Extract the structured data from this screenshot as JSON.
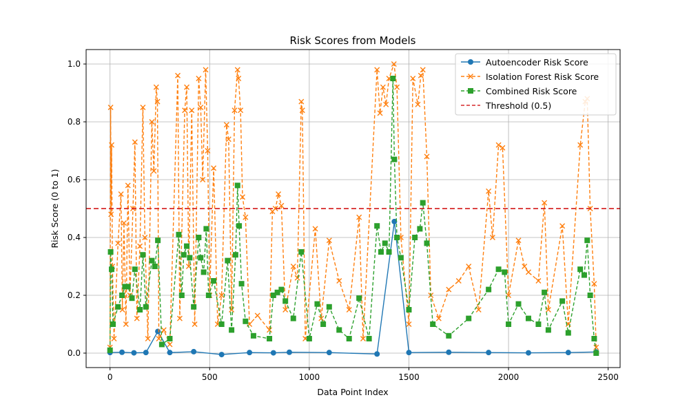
{
  "chart_data": {
    "type": "line",
    "title": "Risk Scores from Models",
    "xlabel": "Data Point Index",
    "ylabel": "Risk Score (0 to 1)",
    "xlim": [
      -120,
      2560
    ],
    "ylim": [
      -0.05,
      1.05
    ],
    "xticks": [
      0,
      500,
      1000,
      1500,
      2000,
      2500
    ],
    "yticks": [
      0.0,
      0.2,
      0.4,
      0.6,
      0.8,
      1.0
    ],
    "xtick_labels": [
      "0",
      "500",
      "1000",
      "1500",
      "2000",
      "2500"
    ],
    "ytick_labels": [
      "0.0",
      "0.2",
      "0.4",
      "0.6",
      "0.8",
      "1.0"
    ],
    "grid": true,
    "legend_position": "top-right",
    "threshold": {
      "name": "Threshold (0.5)",
      "value": 0.5,
      "color": "#d62728"
    },
    "series": [
      {
        "name": "Autoencoder Risk Score",
        "color": "#1f77b4",
        "marker": "circle",
        "points": [
          [
            0,
            0.002
          ],
          [
            60,
            0.003
          ],
          [
            120,
            0.001
          ],
          [
            180,
            0.002
          ],
          [
            240,
            0.075
          ],
          [
            300,
            0.002
          ],
          [
            420,
            0.005
          ],
          [
            560,
            -0.005
          ],
          [
            700,
            0.002
          ],
          [
            820,
            0.001
          ],
          [
            900,
            0.003
          ],
          [
            1100,
            0.002
          ],
          [
            1340,
            -0.003
          ],
          [
            1427,
            0.455
          ],
          [
            1500,
            0.002
          ],
          [
            1700,
            0.003
          ],
          [
            1900,
            0.002
          ],
          [
            2100,
            0.001
          ],
          [
            2300,
            0.002
          ],
          [
            2440,
            0.004
          ]
        ]
      },
      {
        "name": "Isolation Forest Risk Score",
        "color": "#ff7f0e",
        "marker": "x",
        "points": [
          [
            0,
            0.02
          ],
          [
            3,
            0.85
          ],
          [
            5,
            0.48
          ],
          [
            8,
            0.72
          ],
          [
            12,
            0.3
          ],
          [
            20,
            0.05
          ],
          [
            40,
            0.38
          ],
          [
            55,
            0.55
          ],
          [
            62,
            0.15
          ],
          [
            70,
            0.45
          ],
          [
            80,
            0.1
          ],
          [
            90,
            0.58
          ],
          [
            100,
            0.2
          ],
          [
            115,
            0.5
          ],
          [
            125,
            0.73
          ],
          [
            135,
            0.12
          ],
          [
            150,
            0.37
          ],
          [
            165,
            0.85
          ],
          [
            175,
            0.4
          ],
          [
            190,
            0.05
          ],
          [
            210,
            0.8
          ],
          [
            220,
            0.63
          ],
          [
            232,
            0.92
          ],
          [
            238,
            0.87
          ],
          [
            245,
            0.05
          ],
          [
            270,
            0.08
          ],
          [
            300,
            0.03
          ],
          [
            340,
            0.96
          ],
          [
            350,
            0.12
          ],
          [
            375,
            0.84
          ],
          [
            385,
            0.92
          ],
          [
            395,
            0.3
          ],
          [
            410,
            0.84
          ],
          [
            425,
            0.1
          ],
          [
            445,
            0.95
          ],
          [
            455,
            0.85
          ],
          [
            465,
            0.6
          ],
          [
            480,
            0.98
          ],
          [
            490,
            0.7
          ],
          [
            500,
            0.2
          ],
          [
            520,
            0.64
          ],
          [
            540,
            0.1
          ],
          [
            560,
            0.2
          ],
          [
            585,
            0.79
          ],
          [
            595,
            0.74
          ],
          [
            610,
            0.15
          ],
          [
            625,
            0.84
          ],
          [
            640,
            0.98
          ],
          [
            645,
            0.95
          ],
          [
            655,
            0.84
          ],
          [
            665,
            0.54
          ],
          [
            680,
            0.47
          ],
          [
            700,
            0.1
          ],
          [
            740,
            0.13
          ],
          [
            800,
            0.08
          ],
          [
            815,
            0.49
          ],
          [
            830,
            0.5
          ],
          [
            845,
            0.55
          ],
          [
            860,
            0.51
          ],
          [
            880,
            0.15
          ],
          [
            920,
            0.3
          ],
          [
            940,
            0.26
          ],
          [
            960,
            0.87
          ],
          [
            965,
            0.84
          ],
          [
            980,
            0.05
          ],
          [
            1030,
            0.43
          ],
          [
            1060,
            0.12
          ],
          [
            1100,
            0.39
          ],
          [
            1150,
            0.25
          ],
          [
            1200,
            0.15
          ],
          [
            1250,
            0.47
          ],
          [
            1270,
            0.05
          ],
          [
            1340,
            0.98
          ],
          [
            1355,
            0.83
          ],
          [
            1370,
            0.92
          ],
          [
            1385,
            0.86
          ],
          [
            1400,
            0.95
          ],
          [
            1425,
            1.0
          ],
          [
            1440,
            0.92
          ],
          [
            1460,
            0.4
          ],
          [
            1500,
            0.1
          ],
          [
            1520,
            0.95
          ],
          [
            1545,
            0.86
          ],
          [
            1560,
            0.96
          ],
          [
            1570,
            0.98
          ],
          [
            1590,
            0.68
          ],
          [
            1610,
            0.2
          ],
          [
            1650,
            0.12
          ],
          [
            1700,
            0.22
          ],
          [
            1750,
            0.25
          ],
          [
            1800,
            0.3
          ],
          [
            1850,
            0.15
          ],
          [
            1900,
            0.56
          ],
          [
            1920,
            0.4
          ],
          [
            1950,
            0.72
          ],
          [
            1970,
            0.71
          ],
          [
            2000,
            0.2
          ],
          [
            2050,
            0.39
          ],
          [
            2080,
            0.3
          ],
          [
            2100,
            0.28
          ],
          [
            2150,
            0.25
          ],
          [
            2180,
            0.52
          ],
          [
            2200,
            0.15
          ],
          [
            2270,
            0.44
          ],
          [
            2300,
            0.1
          ],
          [
            2360,
            0.72
          ],
          [
            2385,
            0.87
          ],
          [
            2395,
            0.88
          ],
          [
            2410,
            0.5
          ],
          [
            2430,
            0.24
          ],
          [
            2440,
            0.02
          ]
        ]
      },
      {
        "name": "Combined Risk Score",
        "color": "#2ca02c",
        "marker": "square",
        "points": [
          [
            0,
            0.01
          ],
          [
            3,
            0.35
          ],
          [
            8,
            0.29
          ],
          [
            15,
            0.1
          ],
          [
            40,
            0.16
          ],
          [
            60,
            0.2
          ],
          [
            75,
            0.23
          ],
          [
            90,
            0.23
          ],
          [
            110,
            0.19
          ],
          [
            125,
            0.29
          ],
          [
            150,
            0.15
          ],
          [
            165,
            0.34
          ],
          [
            180,
            0.16
          ],
          [
            210,
            0.32
          ],
          [
            225,
            0.3
          ],
          [
            240,
            0.39
          ],
          [
            260,
            0.03
          ],
          [
            300,
            0.05
          ],
          [
            345,
            0.41
          ],
          [
            360,
            0.2
          ],
          [
            370,
            0.34
          ],
          [
            385,
            0.37
          ],
          [
            400,
            0.33
          ],
          [
            420,
            0.16
          ],
          [
            445,
            0.4
          ],
          [
            455,
            0.33
          ],
          [
            470,
            0.28
          ],
          [
            483,
            0.43
          ],
          [
            495,
            0.2
          ],
          [
            520,
            0.25
          ],
          [
            560,
            0.1
          ],
          [
            590,
            0.32
          ],
          [
            610,
            0.08
          ],
          [
            630,
            0.34
          ],
          [
            640,
            0.58
          ],
          [
            648,
            0.44
          ],
          [
            660,
            0.24
          ],
          [
            680,
            0.11
          ],
          [
            720,
            0.06
          ],
          [
            800,
            0.05
          ],
          [
            820,
            0.2
          ],
          [
            840,
            0.21
          ],
          [
            860,
            0.22
          ],
          [
            880,
            0.18
          ],
          [
            920,
            0.12
          ],
          [
            960,
            0.35
          ],
          [
            1000,
            0.05
          ],
          [
            1040,
            0.17
          ],
          [
            1070,
            0.1
          ],
          [
            1100,
            0.16
          ],
          [
            1150,
            0.08
          ],
          [
            1200,
            0.05
          ],
          [
            1250,
            0.19
          ],
          [
            1300,
            0.05
          ],
          [
            1340,
            0.44
          ],
          [
            1360,
            0.35
          ],
          [
            1380,
            0.38
          ],
          [
            1400,
            0.35
          ],
          [
            1420,
            0.95
          ],
          [
            1427,
            0.67
          ],
          [
            1440,
            0.4
          ],
          [
            1460,
            0.33
          ],
          [
            1500,
            0.15
          ],
          [
            1530,
            0.4
          ],
          [
            1555,
            0.43
          ],
          [
            1570,
            0.52
          ],
          [
            1590,
            0.38
          ],
          [
            1620,
            0.1
          ],
          [
            1700,
            0.06
          ],
          [
            1800,
            0.12
          ],
          [
            1900,
            0.22
          ],
          [
            1950,
            0.29
          ],
          [
            1980,
            0.28
          ],
          [
            2000,
            0.1
          ],
          [
            2050,
            0.17
          ],
          [
            2100,
            0.12
          ],
          [
            2150,
            0.1
          ],
          [
            2180,
            0.21
          ],
          [
            2200,
            0.08
          ],
          [
            2270,
            0.18
          ],
          [
            2300,
            0.07
          ],
          [
            2360,
            0.29
          ],
          [
            2380,
            0.27
          ],
          [
            2395,
            0.39
          ],
          [
            2410,
            0.2
          ],
          [
            2430,
            0.05
          ],
          [
            2440,
            0.0
          ]
        ]
      }
    ]
  }
}
